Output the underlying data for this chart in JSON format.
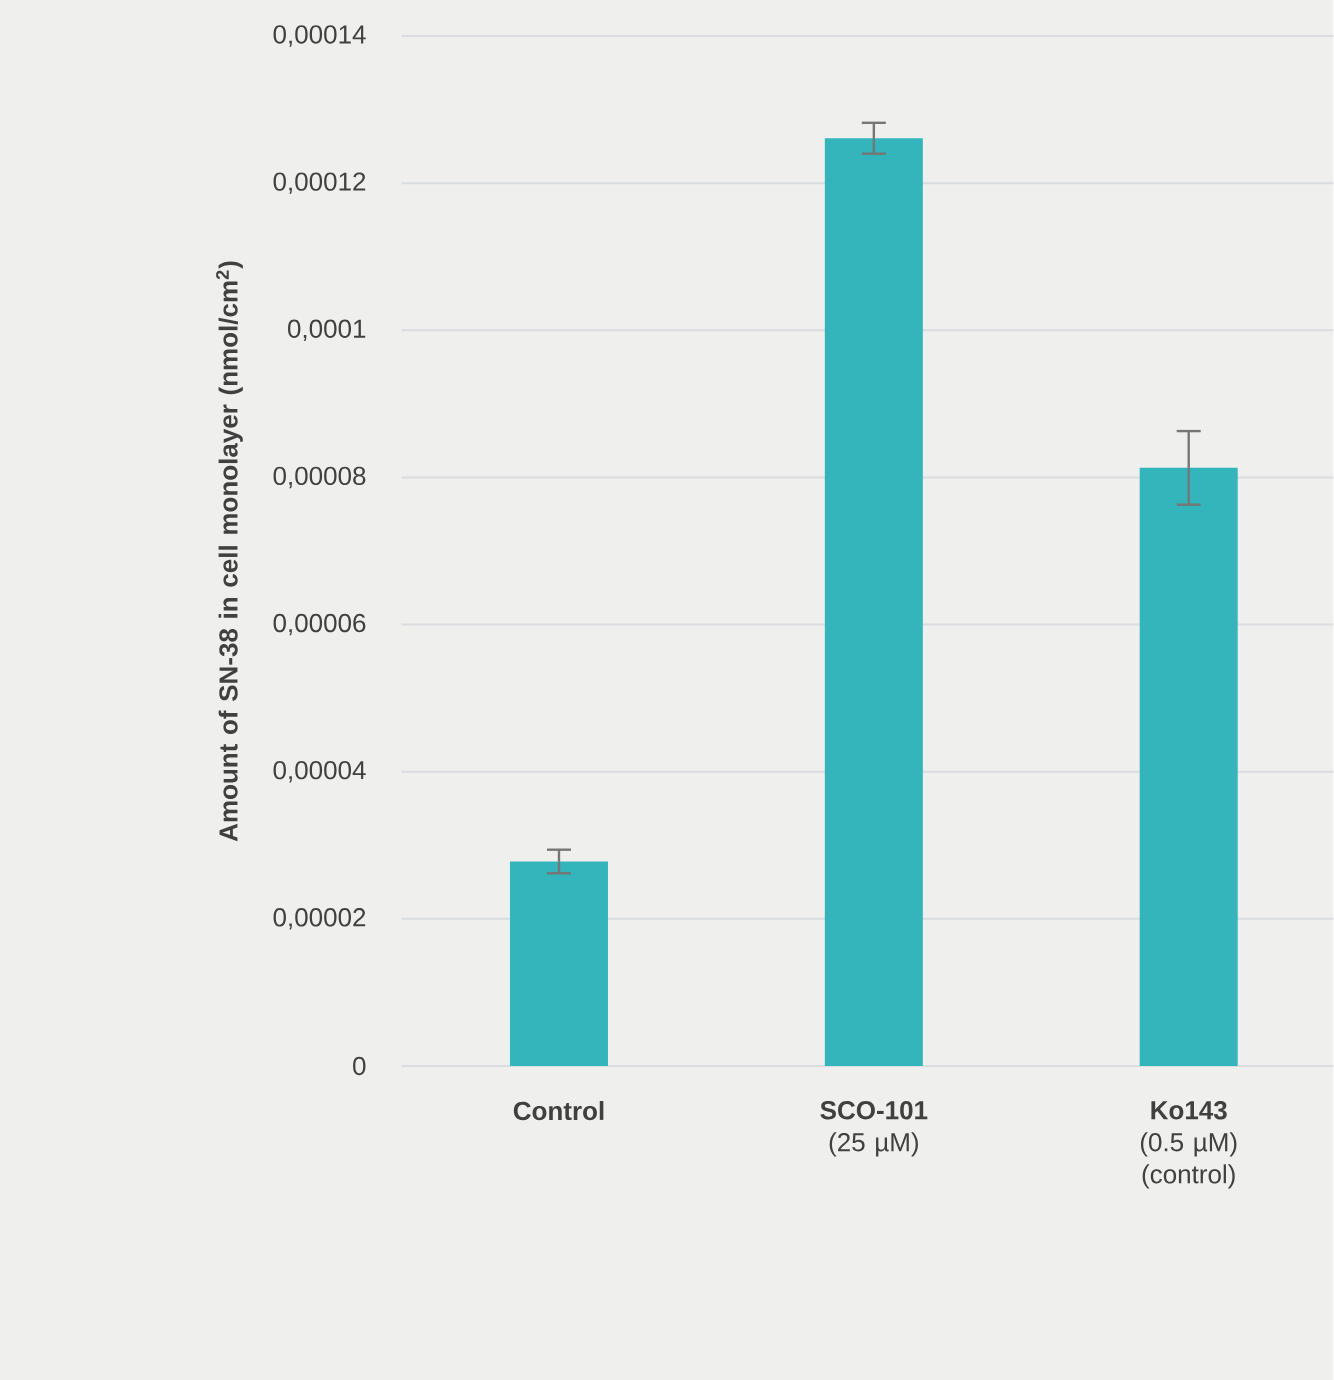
{
  "chart_data": {
    "type": "bar",
    "ylabel": "Amount of SN-38 in cell monolayer (nmol/cm$^{2}$)",
    "categories": [
      "**Control**",
      "**SCO-101** (25 µM)",
      "**Ko143** (0.5 µM) (control)"
    ],
    "values": [
      2.78e-05,
      0.0001261,
      8.13e-05
    ],
    "errors": [
      1.6e-06,
      2.1e-06,
      5e-06
    ],
    "color": "#33b5bb",
    "ylim": [
      0,
      0.00014
    ],
    "yticks": [
      0,
      {
        "value": 2e-05,
        "label": "0,00002"
      },
      {
        "value": 4e-05,
        "label": "0,00004"
      },
      {
        "value": 6e-05,
        "label": "0,00006"
      },
      {
        "value": 8e-05,
        "label": "0,00008"
      },
      {
        "value": 0.0001,
        "label": "0,0001"
      },
      {
        "value": 0.00012,
        "label": "0,00012"
      },
      {
        "value": 0.00014,
        "label": "0,00014"
      }
    ],
    "grid": "y"
  }
}
